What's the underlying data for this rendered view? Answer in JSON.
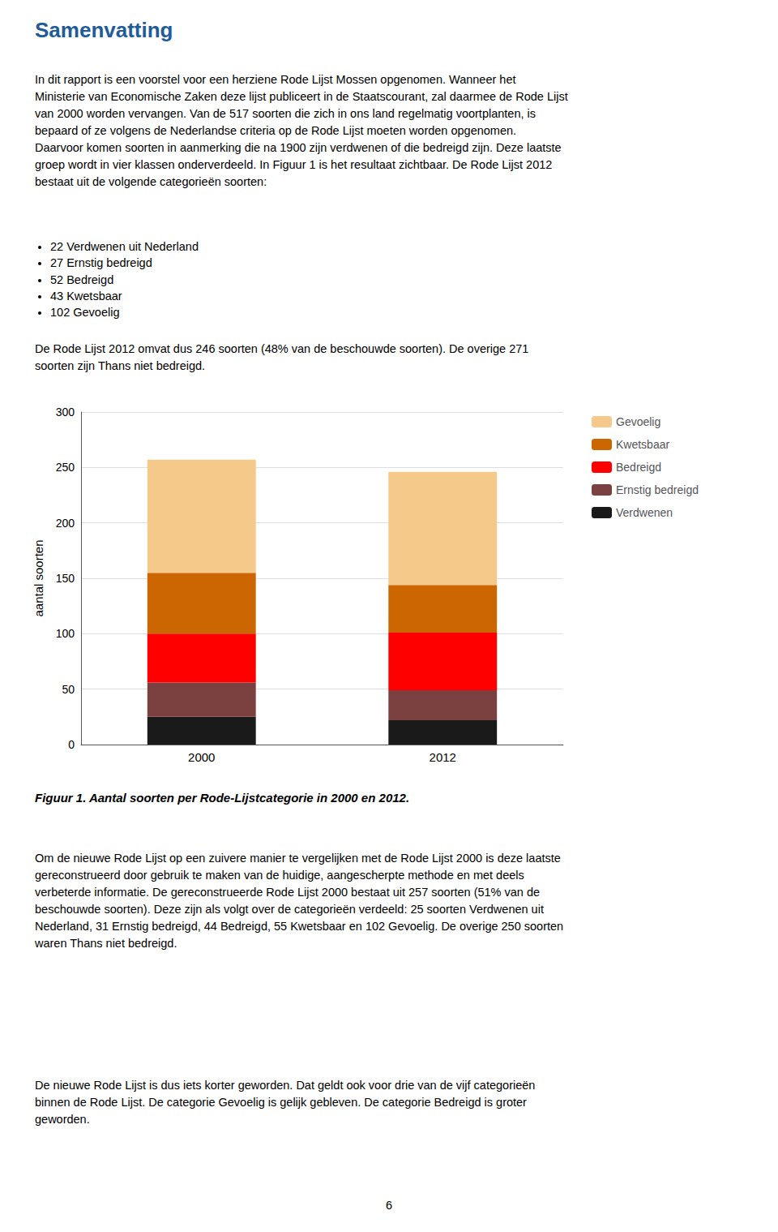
{
  "title": "Samenvatting",
  "text_before": [
    "In dit rapport is een voorstel voor een herziene Rode Lijst Mossen opgenomen. Wanneer het\nMinisterie van Economische Zaken deze lijst publiceert in de Staatscourant, zal daarmee de Rode Lijst\nvan 2000 worden vervangen. Van de 517 soorten die zich in ons land regelmatig voortplanten, is\nbepaard of ze volgens de Nederlandse criteria op de Rode Lijst moeten worden opgenomen.\nDaarvoor komen soorten in aanmerking die na 1900 zijn verdwenen of die bedreigd zijn. Deze laatste\ngroep wordt in vier klassen onderverdeeld. In Figuur 1 is het resultaat zichtbaar. De Rode Lijst 2012\nbestaat uit de volgende categorieën soorten:",
    "De Rode Lijst 2012 omvat dus 246 soorten (48% van de beschouwde soorten). De overige 271\nsoorten zijn Thans niet bedreigd."
  ],
  "bullets": [
    "22 Verdwenen uit Nederland",
    "27 Ernstig bedreigd",
    "52 Bedreigd",
    "43 Kwetsbaar",
    "102 Gevoelig"
  ],
  "chart_data": {
    "type": "bar",
    "stacked": true,
    "categories": [
      "2000",
      "2012"
    ],
    "series": [
      {
        "name": "Verdwenen",
        "color": "#1a1a1a",
        "values": [
          25,
          22
        ]
      },
      {
        "name": "Ernstig bedreigd",
        "color": "#7b4040",
        "values": [
          31,
          27
        ]
      },
      {
        "name": "Bedreigd",
        "color": "#ff0000",
        "values": [
          44,
          52
        ]
      },
      {
        "name": "Kwetsbaar",
        "color": "#cc6600",
        "values": [
          55,
          43
        ]
      },
      {
        "name": "Gevoelig",
        "color": "#f5c98a",
        "values": [
          102,
          102
        ]
      }
    ],
    "ylabel": "aantal soorten",
    "ylim": [
      0,
      300
    ],
    "yticks": [
      0,
      50,
      100,
      150,
      200,
      250,
      300
    ],
    "grid": true,
    "legend": "right"
  },
  "caption": "Figuur 1. Aantal soorten per Rode-Lijstcategorie in 2000 en 2012.",
  "text_after": [
    "Om de nieuwe Rode Lijst op een zuivere manier te vergelijken met de Rode Lijst 2000 is deze laatste\ngereconstrueerd door gebruik te maken van de huidige, aangescherpte methode en met deels\nverbeterde informatie. De gereconstrueerde Rode Lijst 2000 bestaat uit 257 soorten (51% van de\nbeschouwde soorten). Deze zijn als volgt over de categorieën verdeeld: 25 soorten Verdwenen uit\nNederland, 31 Ernstig bedreigd, 44 Bedreigd, 55 Kwetsbaar en 102 Gevoelig. De overige 250 soorten\nwaren Thans niet bedreigd.",
    "De nieuwe Rode Lijst is dus iets korter geworden. Dat geldt ook voor drie van de vijf categorieën\nbinnen de Rode Lijst. De categorie Gevoelig is gelijk gebleven. De categorie Bedreigd is groter\ngeworden."
  ],
  "page_number": "6"
}
